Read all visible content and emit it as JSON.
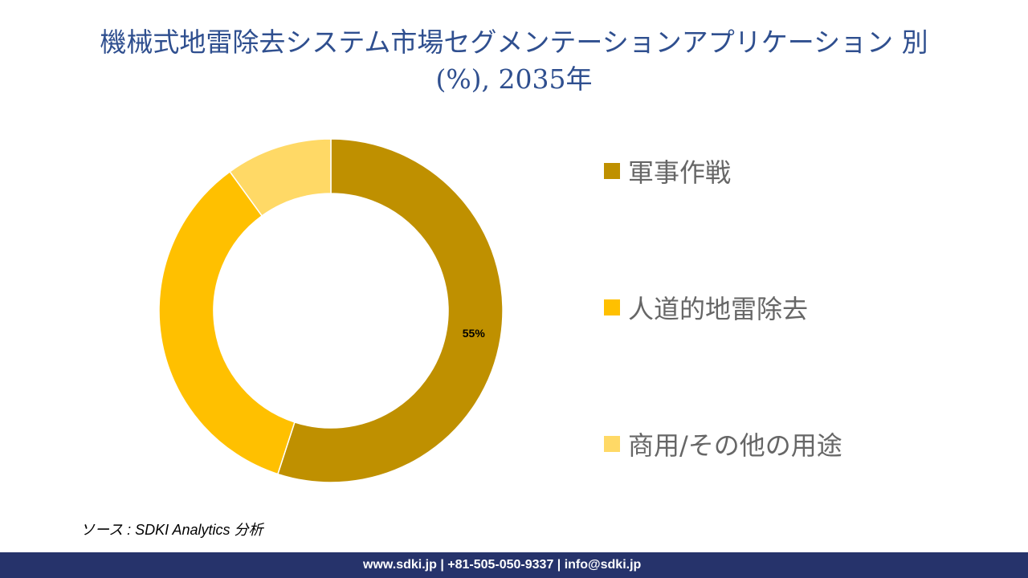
{
  "title_line1": "機械式地雷除去システム市場セグメンテーションアプリケーション 別",
  "title_line2": "(%), 2035年",
  "chart_data": {
    "type": "pie",
    "donut": true,
    "categories": [
      "軍事作戦",
      "人道的地雷除去",
      "商用/その他の用途"
    ],
    "values": [
      55,
      35,
      10
    ],
    "colors": [
      "#bf9000",
      "#ffc000",
      "#ffd966"
    ],
    "data_labels": [
      "55%",
      "",
      ""
    ],
    "legend_position": "right",
    "start": "top, clockwise"
  },
  "source": "ソース : SDKI Analytics 分析",
  "footer": "www.sdki.jp | +81-505-050-9337 | info@sdki.jp"
}
